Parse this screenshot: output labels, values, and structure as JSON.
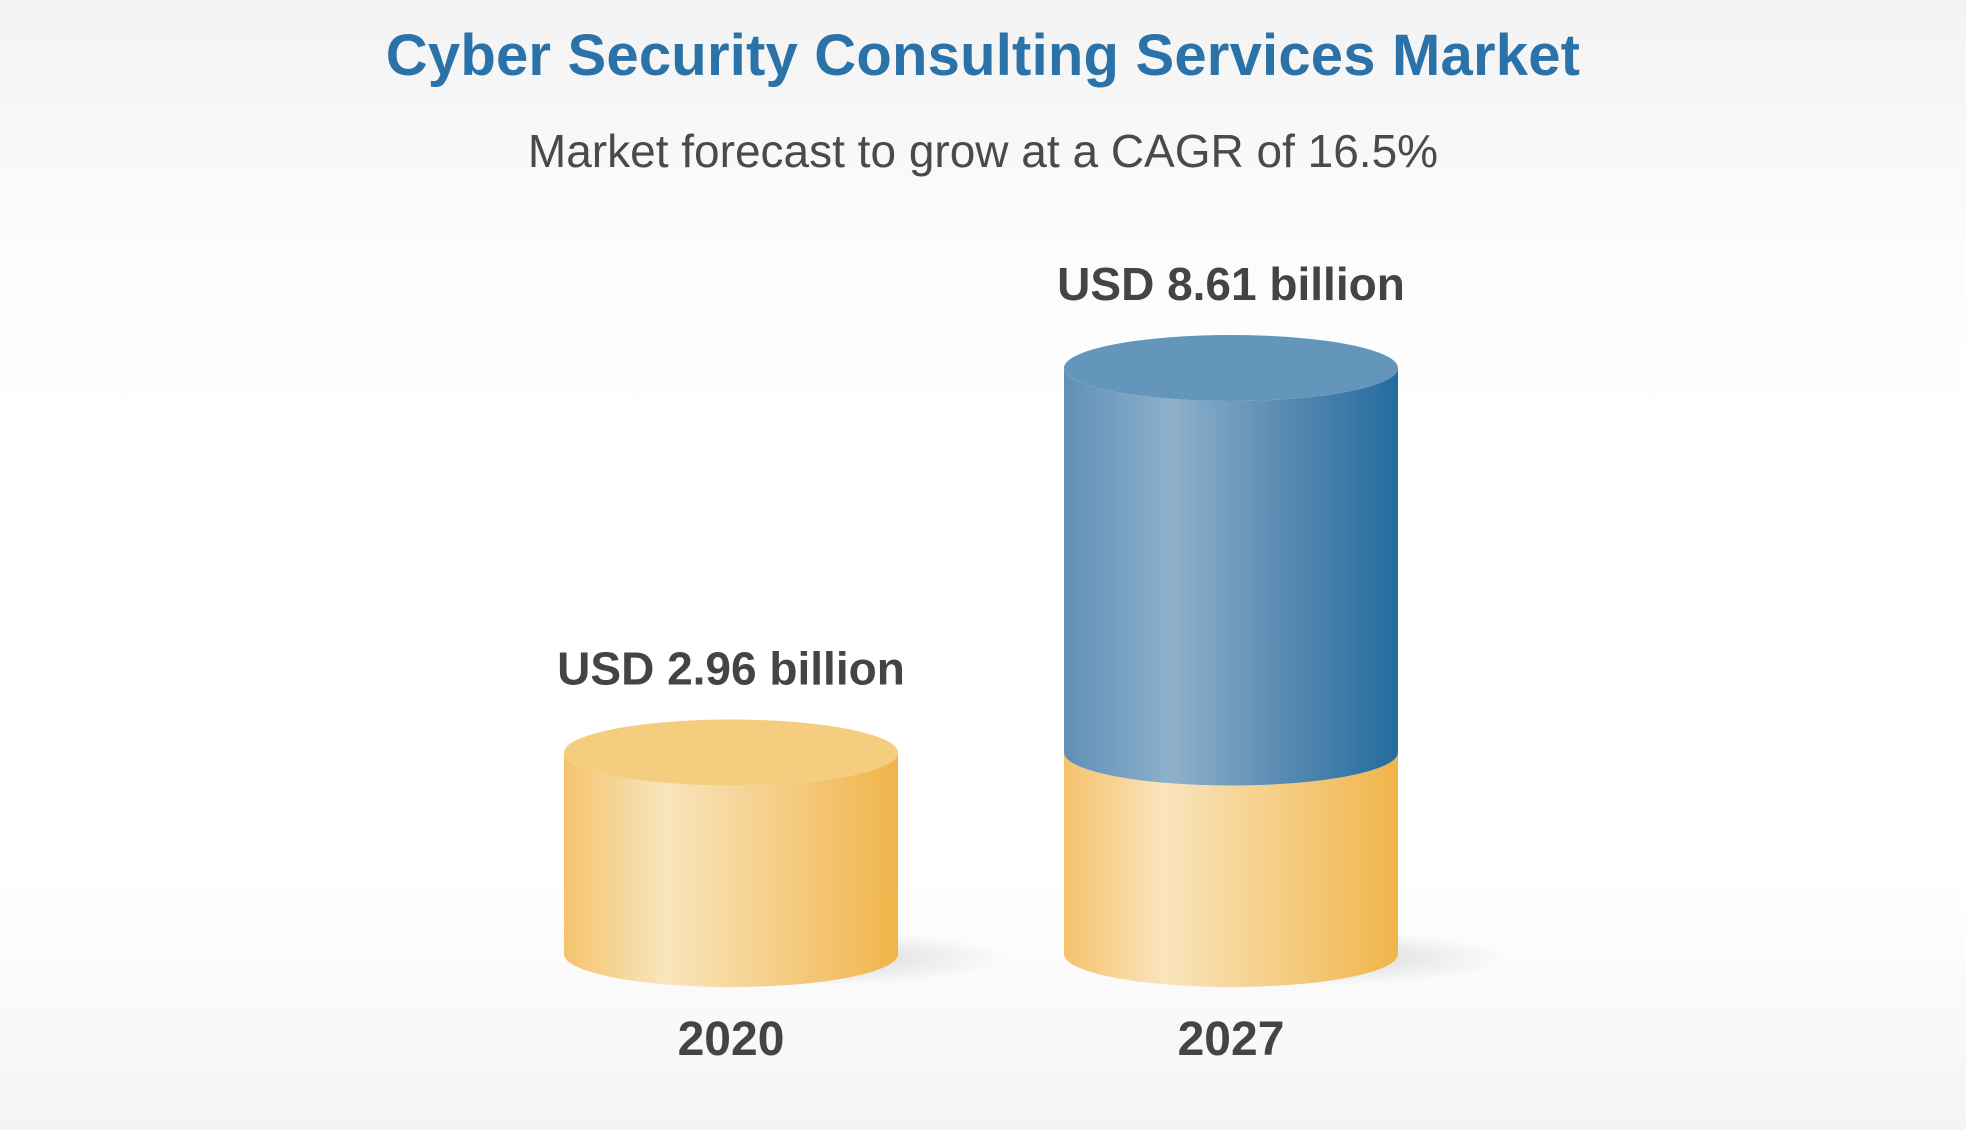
{
  "chart_data": {
    "type": "bar",
    "title": "Cyber Security Consulting Services Market",
    "subtitle": "Market forecast to grow at a CAGR of 16.5%",
    "categories": [
      "2020",
      "2027"
    ],
    "values": [
      2.96,
      8.61
    ],
    "value_labels": [
      "USD 2.96 billion",
      "USD 8.61 billion"
    ],
    "unit": "USD billion",
    "ylim": [
      0,
      8.61
    ],
    "grid": false,
    "legend": "none",
    "style": "3d-cylinder",
    "colors": {
      "base": "#f2b84a",
      "growth": "#2a6d9e",
      "title": "#2a72a8",
      "text": "#444444"
    }
  }
}
